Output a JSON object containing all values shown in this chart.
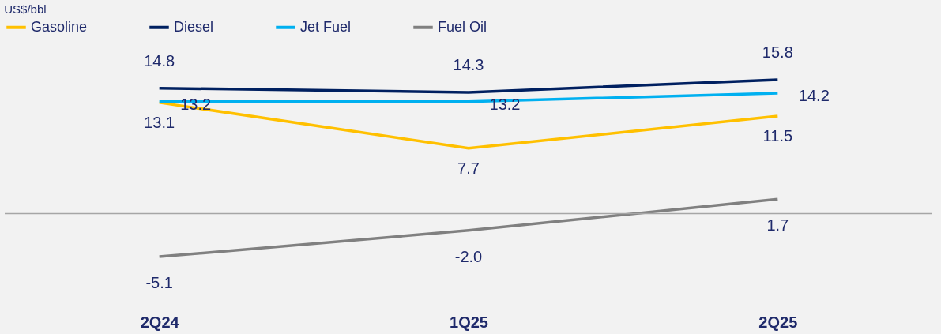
{
  "chart_data": {
    "type": "line",
    "annotations": [
      "US$/bbl"
    ],
    "categories": [
      "2Q24",
      "1Q25",
      "2Q25"
    ],
    "series": [
      {
        "name": "Gasoline",
        "color": "#ffc000",
        "values": [
          13.1,
          7.7,
          11.5
        ],
        "value_labels": [
          "13.1",
          "7.7",
          "11.5"
        ]
      },
      {
        "name": "Diesel",
        "color": "#002060",
        "values": [
          14.8,
          14.3,
          15.8
        ],
        "value_labels": [
          "14.8",
          "14.3",
          "15.8"
        ]
      },
      {
        "name": "Jet Fuel",
        "color": "#00b0f0",
        "values": [
          13.2,
          13.2,
          14.2
        ],
        "value_labels": [
          "13.2",
          "13.2",
          "14.2"
        ]
      },
      {
        "name": "Fuel Oil",
        "color": "#808080",
        "values": [
          -5.1,
          -2.0,
          1.7
        ],
        "value_labels": [
          "-5.1",
          "-2.0",
          "1.7"
        ]
      }
    ],
    "ref_lines": [
      {
        "axis": "y",
        "value": 0,
        "color": "#a6a6a6"
      }
    ],
    "legend": "top",
    "grid": false,
    "marker": "none"
  }
}
